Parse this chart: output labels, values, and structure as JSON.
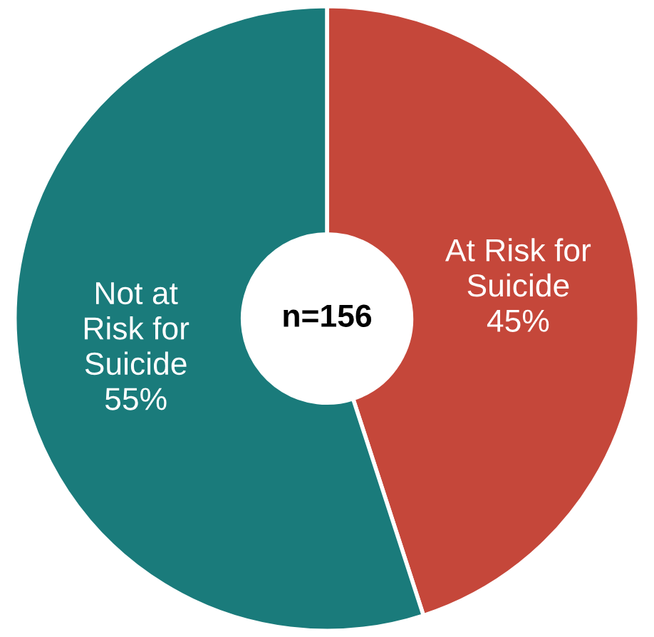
{
  "chart_data": {
    "type": "donut",
    "categories": [
      "At Risk for\nSuicide",
      "Not at\nRisk for\nSuicide"
    ],
    "values": [
      45,
      55
    ],
    "colors": [
      "#c5473a",
      "#1a7b7b"
    ],
    "value_labels": [
      "45%",
      "55%"
    ],
    "annotations": [
      "n=156"
    ],
    "legend": false
  }
}
